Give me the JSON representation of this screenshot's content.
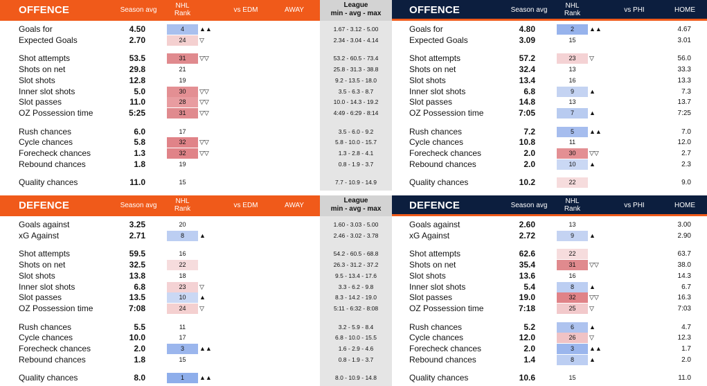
{
  "columns": {
    "season_avg": "Season avg",
    "nhl_rank": "NHL\nRank",
    "vs_edm": "vs EDM",
    "away": "AWAY",
    "league": "League\nmin - avg - max",
    "vs_phi": "vs PHI",
    "home": "HOME"
  },
  "offence": {
    "title": "OFFENCE",
    "rows": [
      {
        "label": "Goals for",
        "l_val": "4.50",
        "l_rank": "4",
        "l_arrow": "▲▲",
        "league": "1.67 - 3.12 - 5.00",
        "r_val": "4.80",
        "r_rank": "2",
        "r_arrow": "▲▲",
        "home": "4.67",
        "l_color": "#a9c0ee",
        "r_color": "#97b3ec",
        "gap": 0
      },
      {
        "label": "Expected Goals",
        "l_val": "2.70",
        "l_rank": "24",
        "l_arrow": "▽",
        "league": "2.34 - 3.04 - 4.14",
        "r_val": "3.09",
        "r_rank": "15",
        "r_arrow": "",
        "home": "3.01",
        "l_color": "#f4d0d0",
        "r_color": "",
        "gap": 0
      },
      {
        "label": "Shot attempts",
        "l_val": "53.5",
        "l_rank": "31",
        "l_arrow": "▽▽",
        "league": "53.2 - 60.5 - 73.4",
        "r_val": "57.2",
        "r_rank": "23",
        "r_arrow": "▽",
        "home": "56.0",
        "l_color": "#e08a8e",
        "r_color": "#f4d2d4",
        "gap": 1
      },
      {
        "label": "Shots on net",
        "l_val": "29.8",
        "l_rank": "21",
        "l_arrow": "",
        "league": "25.8 - 31.3 - 38.8",
        "r_val": "32.4",
        "r_rank": "13",
        "r_arrow": "",
        "home": "33.3",
        "l_color": "",
        "r_color": "",
        "gap": 0
      },
      {
        "label": "Slot shots",
        "l_val": "12.8",
        "l_rank": "19",
        "l_arrow": "",
        "league": "9.2 - 13.5 - 18.0",
        "r_val": "13.4",
        "r_rank": "16",
        "r_arrow": "",
        "home": "13.3",
        "l_color": "",
        "r_color": "",
        "gap": 0
      },
      {
        "label": "Inner slot shots",
        "l_val": "5.0",
        "l_rank": "30",
        "l_arrow": "▽▽",
        "league": "3.5 - 6.3 - 8.7",
        "r_val": "6.8",
        "r_rank": "9",
        "r_arrow": "▲",
        "home": "7.3",
        "l_color": "#e38f93",
        "r_color": "#c4d3f2",
        "gap": 0
      },
      {
        "label": "Slot passes",
        "l_val": "11.0",
        "l_rank": "28",
        "l_arrow": "▽▽",
        "league": "10.0 - 14.3 - 19.2",
        "r_val": "14.8",
        "r_rank": "13",
        "r_arrow": "",
        "home": "13.7",
        "l_color": "#e89ca0",
        "r_color": "",
        "gap": 0
      },
      {
        "label": "OZ Possession time",
        "l_val": "5:25",
        "l_rank": "31",
        "l_arrow": "▽▽",
        "league": "4:49 - 6:29 - 8:14",
        "r_val": "7:05",
        "r_rank": "7",
        "r_arrow": "▲",
        "home": "7:25",
        "l_color": "#e08a8e",
        "r_color": "#b8cbf0",
        "gap": 0
      },
      {
        "label": "Rush chances",
        "l_val": "6.0",
        "l_rank": "17",
        "l_arrow": "",
        "league": "3.5 - 6.0 - 9.2",
        "r_val": "7.2",
        "r_rank": "5",
        "r_arrow": "▲▲",
        "home": "7.0",
        "l_color": "",
        "r_color": "#a6bdee",
        "gap": 1
      },
      {
        "label": "Cycle chances",
        "l_val": "5.8",
        "l_rank": "32",
        "l_arrow": "▽▽",
        "league": "5.8 - 10.0 - 15.7",
        "r_val": "10.8",
        "r_rank": "11",
        "r_arrow": "",
        "home": "12.0",
        "l_color": "#e08388",
        "r_color": "",
        "gap": 0
      },
      {
        "label": "Forecheck chances",
        "l_val": "1.3",
        "l_rank": "32",
        "l_arrow": "▽▽",
        "league": "1.3 - 2.8 - 4.1",
        "r_val": "2.0",
        "r_rank": "30",
        "r_arrow": "▽▽",
        "home": "2.7",
        "l_color": "#e08388",
        "r_color": "#e38f93",
        "gap": 0
      },
      {
        "label": "Rebound chances",
        "l_val": "1.8",
        "l_rank": "19",
        "l_arrow": "",
        "league": "0.8 - 1.9 - 3.7",
        "r_val": "2.0",
        "r_rank": "10",
        "r_arrow": "▲",
        "home": "2.3",
        "l_color": "",
        "r_color": "#cad8f4",
        "gap": 0
      },
      {
        "label": "Quality chances",
        "l_val": "11.0",
        "l_rank": "15",
        "l_arrow": "",
        "league": "7.7 - 10.9 - 14.9",
        "r_val": "10.2",
        "r_rank": "22",
        "r_arrow": "",
        "home": "9.0",
        "l_color": "",
        "r_color": "#f6dcdd",
        "gap": 1
      }
    ]
  },
  "defence": {
    "title": "DEFENCE",
    "rows": [
      {
        "label": "Goals against",
        "l_val": "3.25",
        "l_rank": "20",
        "l_arrow": "",
        "league": "1.60 - 3.03 - 5.00",
        "r_val": "2.60",
        "r_rank": "13",
        "r_arrow": "",
        "home": "3.00",
        "l_color": "",
        "r_color": "",
        "gap": 0
      },
      {
        "label": "xG Against",
        "l_val": "2.71",
        "l_rank": "8",
        "l_arrow": "▲",
        "league": "2.46 - 3.02 - 3.78",
        "r_val": "2.72",
        "r_rank": "9",
        "r_arrow": "▲",
        "home": "2.90",
        "l_color": "#bccef2",
        "r_color": "#c4d3f2",
        "gap": 0
      },
      {
        "label": "Shot attempts",
        "l_val": "59.5",
        "l_rank": "16",
        "l_arrow": "",
        "league": "54.2 - 60.5 - 68.8",
        "r_val": "62.6",
        "r_rank": "22",
        "r_arrow": "",
        "home": "63.7",
        "l_color": "",
        "r_color": "#f6dcdd",
        "gap": 1
      },
      {
        "label": "Shots on net",
        "l_val": "32.5",
        "l_rank": "22",
        "l_arrow": "",
        "league": "26.3 - 31.2 - 37.2",
        "r_val": "35.4",
        "r_rank": "31",
        "r_arrow": "▽▽",
        "home": "38.0",
        "l_color": "#f6dcdd",
        "r_color": "#e08a8e",
        "gap": 0
      },
      {
        "label": "Slot shots",
        "l_val": "13.8",
        "l_rank": "18",
        "l_arrow": "",
        "league": "9.5 - 13.4 - 17.6",
        "r_val": "13.6",
        "r_rank": "16",
        "r_arrow": "",
        "home": "14.3",
        "l_color": "",
        "r_color": "",
        "gap": 0
      },
      {
        "label": "Inner slot shots",
        "l_val": "6.8",
        "l_rank": "23",
        "l_arrow": "▽",
        "league": "3.3 - 6.2 - 9.8",
        "r_val": "5.4",
        "r_rank": "8",
        "r_arrow": "▲",
        "home": "6.7",
        "l_color": "#f4d2d4",
        "r_color": "#bccef2",
        "gap": 0
      },
      {
        "label": "Slot passes",
        "l_val": "13.5",
        "l_rank": "10",
        "l_arrow": "▲",
        "league": "8.3 - 14.2 - 19.0",
        "r_val": "19.0",
        "r_rank": "32",
        "r_arrow": "▽▽",
        "home": "16.3",
        "l_color": "#cad8f4",
        "r_color": "#e08388",
        "gap": 0
      },
      {
        "label": "OZ Possession time",
        "l_val": "7:08",
        "l_rank": "24",
        "l_arrow": "▽",
        "league": "5:11 - 6:32 - 8:08",
        "r_val": "7:18",
        "r_rank": "25",
        "r_arrow": "▽",
        "home": "7:03",
        "l_color": "#f4d0d0",
        "r_color": "#f2c9cb",
        "gap": 0
      },
      {
        "label": "Rush chances",
        "l_val": "5.5",
        "l_rank": "11",
        "l_arrow": "",
        "league": "3.2 - 5.9 - 8.4",
        "r_val": "5.2",
        "r_rank": "6",
        "r_arrow": "▲",
        "home": "4.7",
        "l_color": "",
        "r_color": "#aec3ef",
        "gap": 1
      },
      {
        "label": "Cycle chances",
        "l_val": "10.0",
        "l_rank": "17",
        "l_arrow": "",
        "league": "6.8 - 10.0 - 15.5",
        "r_val": "12.0",
        "r_rank": "26",
        "r_arrow": "▽",
        "home": "12.3",
        "l_color": "",
        "r_color": "#f0c3c5",
        "gap": 0
      },
      {
        "label": "Forecheck chances",
        "l_val": "2.0",
        "l_rank": "3",
        "l_arrow": "▲▲",
        "league": "1.6 - 2.9 - 4.6",
        "r_val": "2.0",
        "r_rank": "3",
        "r_arrow": "▲▲",
        "home": "1.7",
        "l_color": "#9bb6ed",
        "r_color": "#9bb6ed",
        "gap": 0
      },
      {
        "label": "Rebound chances",
        "l_val": "1.8",
        "l_rank": "15",
        "l_arrow": "",
        "league": "0.8 - 1.9 - 3.7",
        "r_val": "1.4",
        "r_rank": "8",
        "r_arrow": "▲",
        "home": "2.0",
        "l_color": "",
        "r_color": "#bccef2",
        "gap": 0
      },
      {
        "label": "Quality chances",
        "l_val": "8.0",
        "l_rank": "1",
        "l_arrow": "▲▲",
        "league": "8.0 - 10.9 - 14.8",
        "r_val": "10.6",
        "r_rank": "15",
        "r_arrow": "",
        "home": "11.0",
        "l_color": "#8eaeeb",
        "r_color": "",
        "gap": 1
      }
    ]
  }
}
